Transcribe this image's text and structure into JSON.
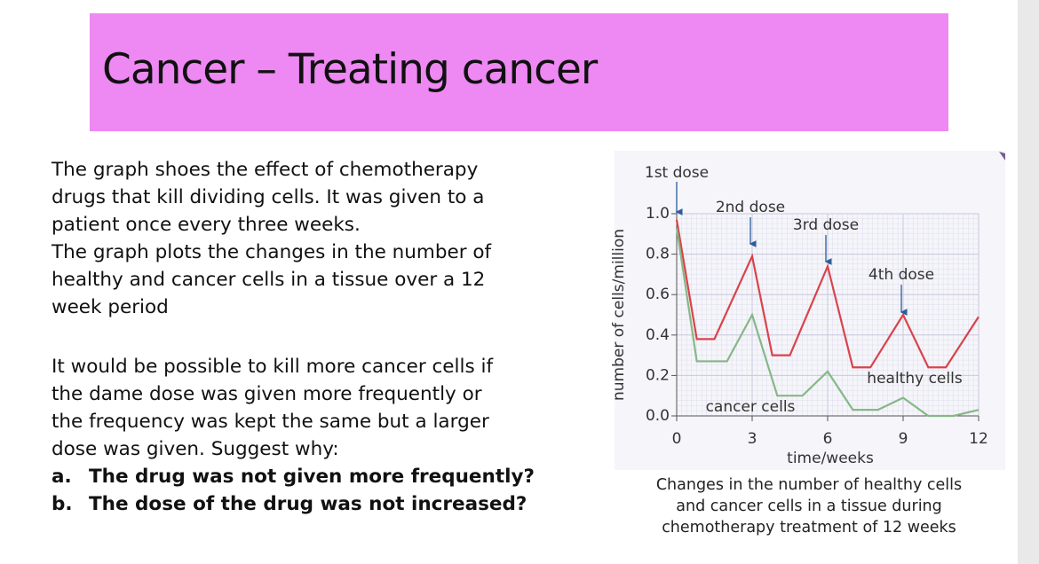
{
  "header": {
    "title": "Cancer – Treating cancer"
  },
  "body": {
    "paragraph1": [
      "The graph shoes the effect of chemotherapy",
      "drugs that kill dividing cells. It was given to a",
      "patient once every three weeks.",
      "The graph plots the changes in the number of",
      "healthy and cancer cells in a tissue over a 12",
      "week period"
    ],
    "paragraph2": [
      "It would be possible to kill more cancer cells if",
      "the dame dose was given more frequently or",
      "the frequency was kept the same but a larger",
      "dose was given. Suggest why:"
    ],
    "questions": [
      {
        "marker": "a.",
        "text": "The drug was not given more frequently?"
      },
      {
        "marker": "b.",
        "text": "The dose of the drug was not increased?"
      }
    ]
  },
  "chart_data": {
    "type": "line",
    "x_label": "time/weeks",
    "y_label": "number of cells/million",
    "annotations": [
      "1st dose",
      "2nd dose",
      "3rd dose",
      "4th dose"
    ],
    "series": [
      {
        "name": "healthy cells",
        "color": "#d9434a",
        "x": [
          0,
          0.8,
          1.5,
          3,
          3.8,
          4.5,
          6,
          7,
          7.7,
          9,
          10,
          10.7,
          12
        ],
        "values": [
          0.97,
          0.38,
          0.38,
          0.79,
          0.3,
          0.3,
          0.74,
          0.24,
          0.24,
          0.5,
          0.24,
          0.24,
          0.49
        ]
      },
      {
        "name": "cancer cells",
        "color": "#86b886",
        "x": [
          0,
          0.8,
          2,
          3,
          4,
          5,
          6,
          7,
          8,
          9,
          10,
          11,
          12
        ],
        "values": [
          0.93,
          0.27,
          0.27,
          0.5,
          0.1,
          0.1,
          0.22,
          0.03,
          0.03,
          0.09,
          0,
          0,
          0.03
        ]
      }
    ],
    "xlim": [
      0,
      12
    ],
    "xticks": [
      0,
      3,
      6,
      9,
      12
    ],
    "ylim": [
      0,
      1
    ],
    "yticks": [
      {
        "value": 0,
        "label": "0.0"
      },
      0.2,
      0.4,
      0.6,
      0.8,
      {
        "value": 1,
        "label": "1.0"
      }
    ],
    "grid": true,
    "caption": [
      "Changes in the number of healthy cells",
      "and cancer cells in a tissue during",
      "chemotherapy treatment of 12 weeks"
    ]
  }
}
